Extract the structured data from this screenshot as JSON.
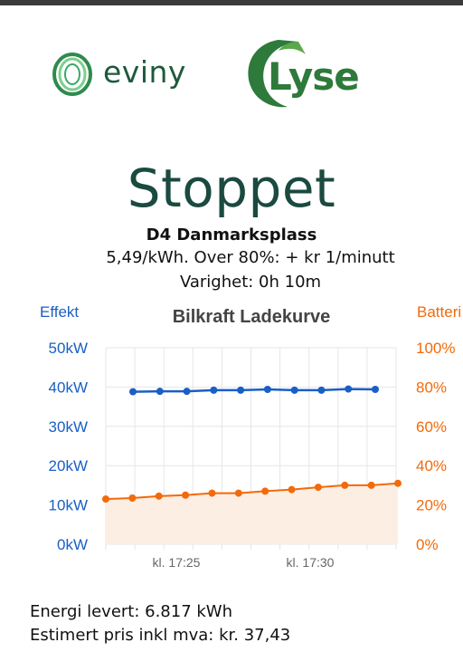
{
  "logos": {
    "left": "eviny",
    "right": "Lyse"
  },
  "status": "Stoppet",
  "station": "D4 Danmarksplass",
  "price_line": "5,49/kWh. Over 80%: + kr 1/minutt",
  "duration_line": "Varighet: 0h 10m",
  "chart_data": {
    "type": "line",
    "title": "Bilkraft Ladekurve",
    "y_left_label": "Effekt",
    "y_right_label": "Batteri",
    "y_left_ticks": [
      "50kW",
      "40kW",
      "30kW",
      "20kW",
      "10kW",
      "0kW"
    ],
    "y_right_ticks": [
      "100%",
      "80%",
      "60%",
      "40%",
      "20%",
      "0%"
    ],
    "x_ticks": [
      "kl. 17:25",
      "kl. 17:30"
    ],
    "ylim_left": [
      0,
      50
    ],
    "ylim_right": [
      0,
      100
    ],
    "series": [
      {
        "name": "Effekt",
        "axis": "left",
        "color": "#1a5fc4",
        "values": [
          38.8,
          38.9,
          38.9,
          39.2,
          39.2,
          39.4,
          39.2,
          39.2,
          39.5,
          39.4
        ]
      },
      {
        "name": "Batteri",
        "axis": "right",
        "color": "#f26a0a",
        "values": [
          23,
          23.5,
          24.5,
          25,
          26,
          26,
          27,
          27.8,
          29,
          30,
          30,
          31
        ]
      }
    ],
    "colors": {
      "left_axis": "#1a5fc4",
      "right_axis": "#f26a0a",
      "grid": "#e6e6e6",
      "area_fill": "#fdeee3"
    }
  },
  "info": {
    "energy": "Energi levert: 6.817 kWh",
    "cost": "Estimert pris inkl mva: kr. 37,43"
  }
}
